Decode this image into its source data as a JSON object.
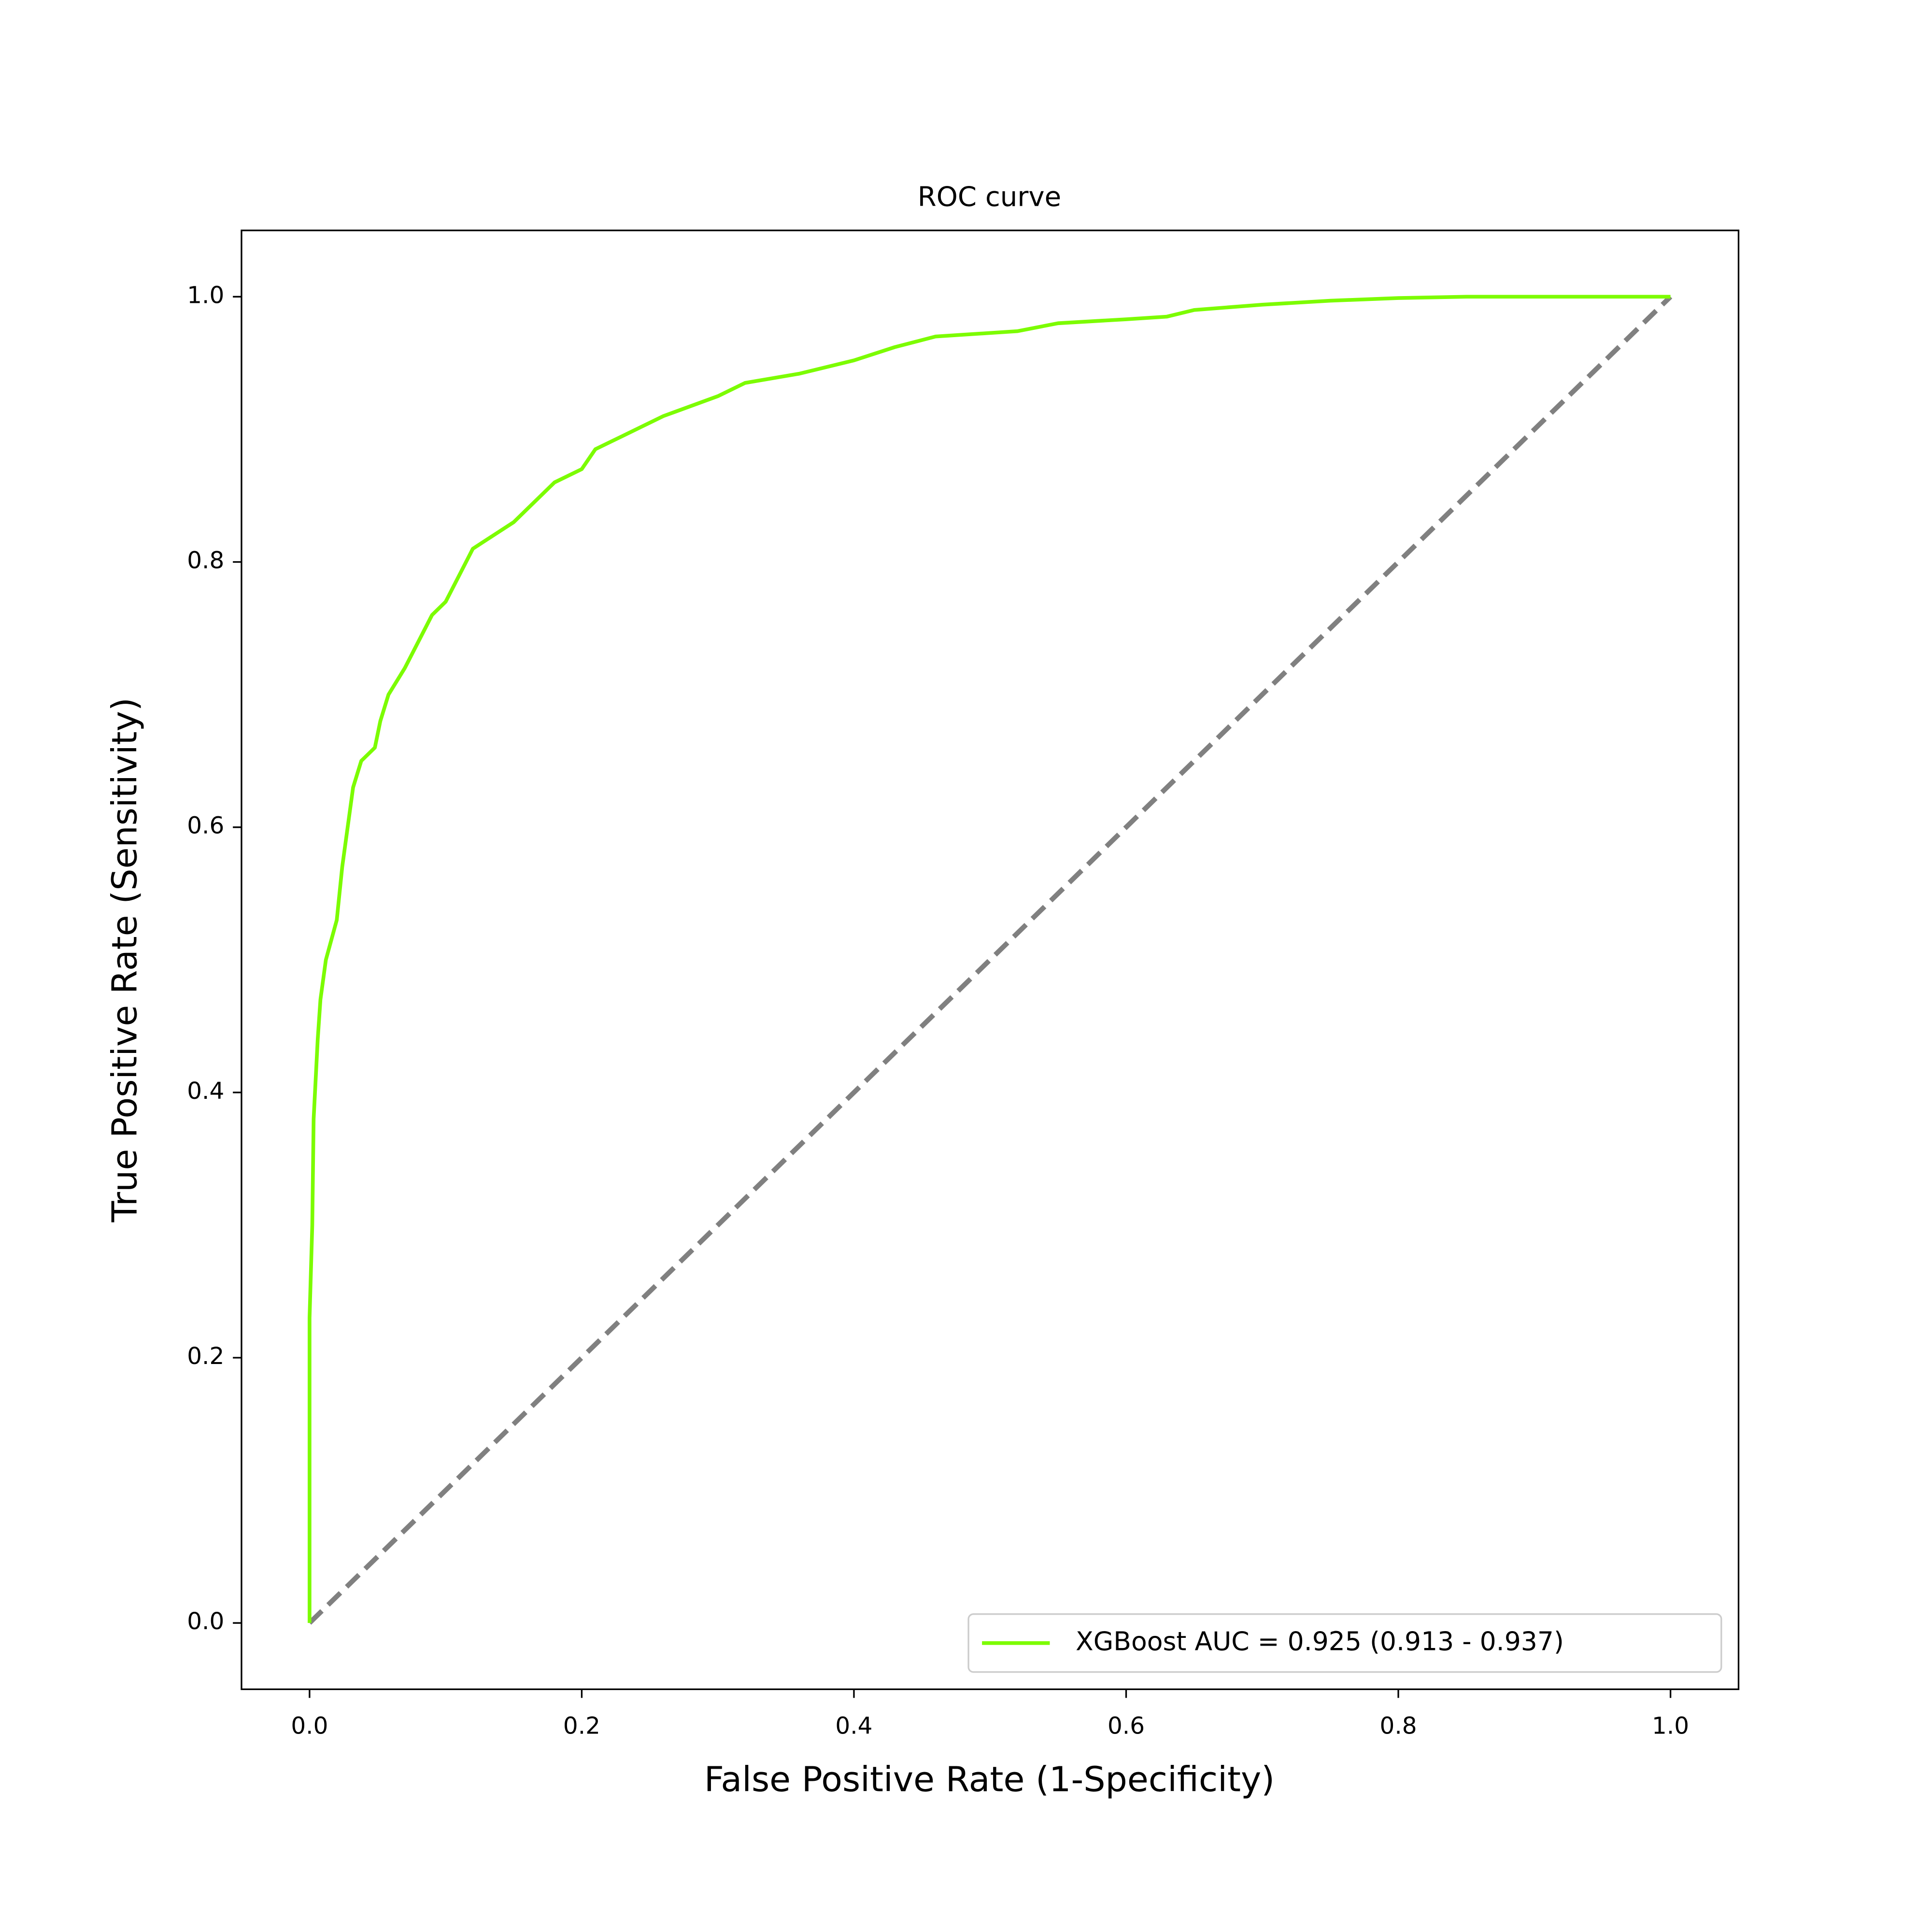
{
  "chart_data": {
    "type": "line",
    "title": "ROC curve",
    "x_label": "False Positive Rate (1-Specificity)",
    "y_label": "True Positive Rate (Sensitivity)",
    "xlim": [
      -0.05,
      1.05
    ],
    "ylim": [
      -0.05,
      1.05
    ],
    "xticks": [
      {
        "value": 0,
        "label": "0.0"
      },
      0.2,
      0.4,
      0.6,
      0.8,
      {
        "value": 1,
        "label": "1.0"
      }
    ],
    "yticks": [
      {
        "value": 0,
        "label": "0.0"
      },
      0.2,
      0.4,
      0.6,
      0.8,
      {
        "value": 1,
        "label": "1.0"
      }
    ],
    "legend": "lower right",
    "series": [
      {
        "name": "XGBoost AUC = 0.925 (0.913 - 0.937)",
        "color": "#7cfc00",
        "x": [
          0,
          0,
          0.002,
          0.003,
          0.006,
          0.008,
          0.012,
          0.02,
          0.024,
          0.028,
          0.032,
          0.038,
          0.048,
          0.052,
          0.058,
          0.07,
          0.08,
          0.09,
          0.1,
          0.11,
          0.12,
          0.135,
          0.15,
          0.16,
          0.18,
          0.2,
          0.21,
          0.23,
          0.26,
          0.3,
          0.32,
          0.36,
          0.4,
          0.43,
          0.46,
          0.52,
          0.55,
          0.6,
          0.63,
          0.65,
          0.7,
          0.75,
          0.8,
          0.85,
          1.0
        ],
        "values": [
          0,
          0.23,
          0.3,
          0.38,
          0.44,
          0.47,
          0.5,
          0.53,
          0.57,
          0.6,
          0.63,
          0.65,
          0.66,
          0.68,
          0.7,
          0.72,
          0.74,
          0.76,
          0.77,
          0.79,
          0.81,
          0.82,
          0.83,
          0.84,
          0.86,
          0.87,
          0.885,
          0.895,
          0.91,
          0.925,
          0.935,
          0.942,
          0.952,
          0.962,
          0.97,
          0.974,
          0.98,
          0.983,
          0.985,
          0.99,
          0.994,
          0.997,
          0.999,
          1.0,
          1.0
        ]
      }
    ],
    "reference_line": {
      "x": [
        0,
        1
      ],
      "values": [
        0,
        1
      ],
      "color": "#808080",
      "dashed": true
    }
  }
}
